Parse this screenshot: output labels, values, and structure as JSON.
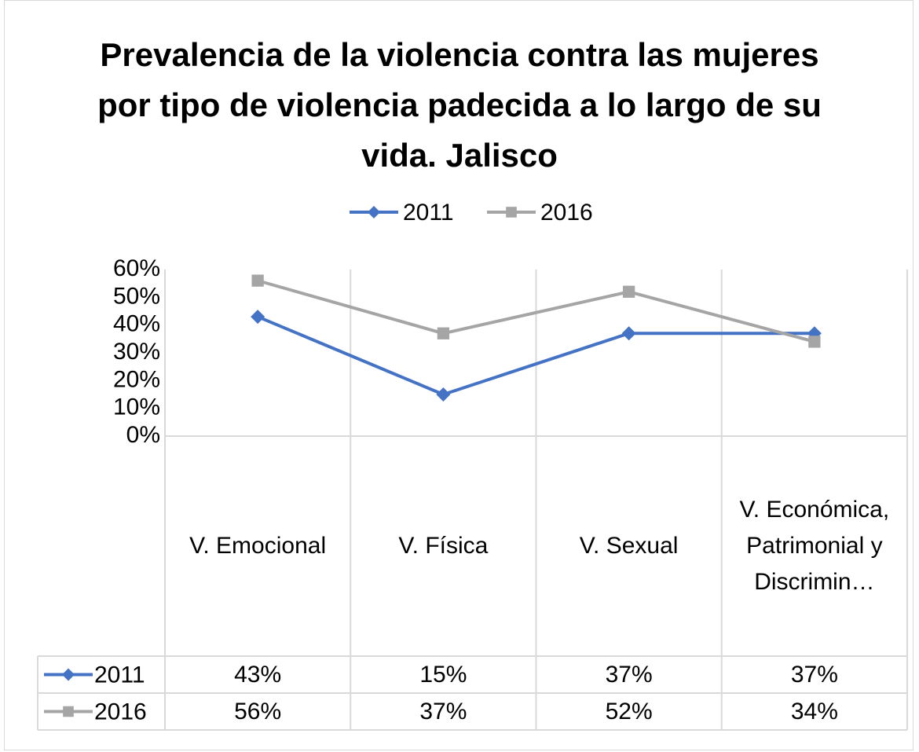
{
  "chart_data": {
    "type": "line",
    "title": "Prevalencia de la violencia contra las mujeres por tipo de violencia padecida a lo largo de su vida. Jalisco",
    "categories": [
      "V. Emocional",
      "V. Física",
      "V. Sexual",
      "V. Económica, Patrimonial y Discrimin…"
    ],
    "series": [
      {
        "name": "2011",
        "color": "#4472c4",
        "marker": "diamond",
        "values": [
          43,
          15,
          37,
          37
        ],
        "value_labels": [
          "43%",
          "15%",
          "37%",
          "37%"
        ]
      },
      {
        "name": "2016",
        "color": "#a5a5a5",
        "marker": "square",
        "values": [
          56,
          37,
          52,
          34
        ],
        "value_labels": [
          "56%",
          "37%",
          "52%",
          "34%"
        ]
      }
    ],
    "ylim": [
      0,
      60
    ],
    "yticks": [
      {
        "value": 0,
        "label": "0%"
      },
      {
        "value": 10,
        "label": "10%"
      },
      {
        "value": 20,
        "label": "20%"
      },
      {
        "value": 30,
        "label": "30%"
      },
      {
        "value": 40,
        "label": "40%"
      },
      {
        "value": 50,
        "label": "50%"
      },
      {
        "value": 60,
        "label": "60%"
      }
    ],
    "legend": "top",
    "data_table": true
  }
}
